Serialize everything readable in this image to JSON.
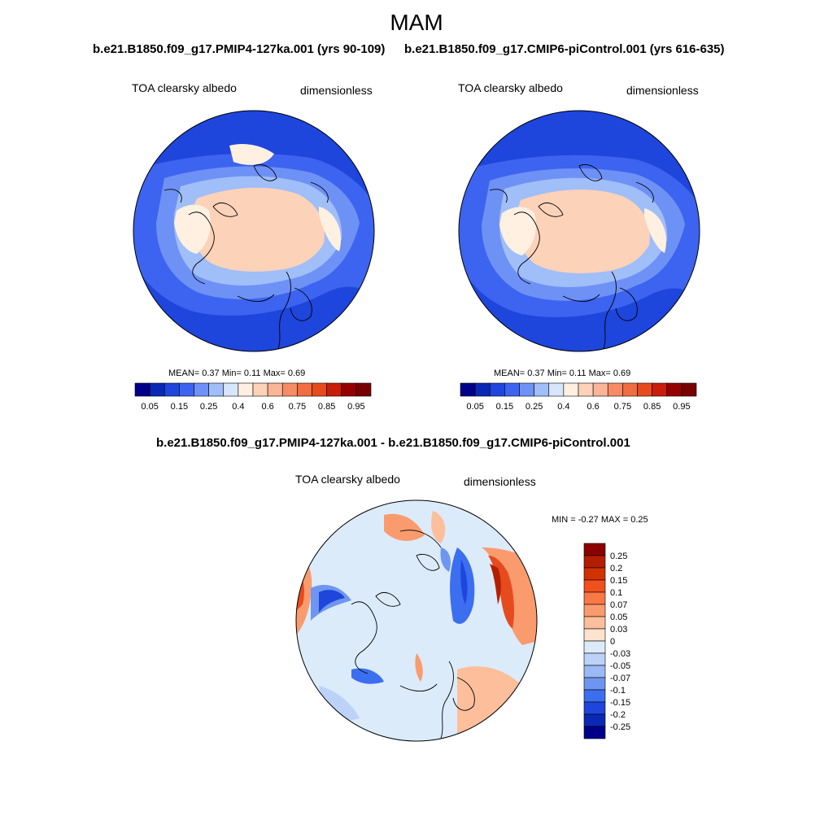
{
  "page": {
    "title": "MAM",
    "left_panel_title": "b.e21.B1850.f09_g17.PMIP4-127ka.001 (yrs 90-109)",
    "right_panel_title": "b.e21.B1850.f09_g17.CMIP6-piControl.001 (yrs 616-635)",
    "diff_panel_title": "b.e21.B1850.f09_g17.PMIP4-127ka.001 - b.e21.B1850.f09_g17.CMIP6-piControl.001"
  },
  "panels": {
    "left": {
      "variable": "TOA clearsky albedo",
      "units": "dimensionless",
      "stats": "MEAN=   0.37  Min=   0.11  Max=   0.69"
    },
    "right": {
      "variable": "TOA clearsky albedo",
      "units": "dimensionless",
      "stats": "MEAN=   0.37  Min=   0.11  Max=   0.69"
    },
    "diff": {
      "variable": "TOA clearsky albedo",
      "units": "dimensionless",
      "stats": "MIN =  -0.27 MAX =   0.25"
    }
  },
  "colorbar_abs": {
    "colors": [
      "#00008b",
      "#0a28b4",
      "#1e46dc",
      "#3c64f0",
      "#6e91f5",
      "#a0bef8",
      "#d7e6fa",
      "#fff0e1",
      "#fcd2b9",
      "#fab496",
      "#f58c64",
      "#f06e41",
      "#e64b1e",
      "#c81e0a",
      "#960000",
      "#780000"
    ],
    "tick_labels": [
      "0.05",
      "0.15",
      "0.25",
      "0.4",
      "0.6",
      "0.75",
      "0.85",
      "0.95"
    ]
  },
  "colorbar_diff": {
    "colors": [
      "#8b0000",
      "#b41e00",
      "#d23200",
      "#f0501e",
      "#fa7846",
      "#fa9b6e",
      "#fcbe9b",
      "#fde3cd",
      "#dcebfa",
      "#bcd2f8",
      "#9bb9f5",
      "#6e96f0",
      "#3c6ef0",
      "#1e46dc",
      "#0a28b4",
      "#00008b"
    ],
    "tick_labels": [
      "0.25",
      "0.2",
      "0.15",
      "0.1",
      "0.07",
      "0.05",
      "0.03",
      "0",
      "-0.03",
      "-0.05",
      "-0.07",
      "-0.1",
      "-0.15",
      "-0.2",
      "-0.25"
    ]
  },
  "map_colors": {
    "ocean_dark": "#1e46dc",
    "ocean_mid": "#3c64f0",
    "ocean_light": "#6e91f5",
    "ice_pale": "#a0bef8",
    "land_cream": "#fff0e1",
    "ice_salmon": "#fcd2b9",
    "diff_bg": "#dcebfa",
    "diff_red": "#e64b1e",
    "diff_orange": "#fa9b6e",
    "diff_blue": "#1e46dc",
    "diff_lightblue": "#9bb9f5"
  }
}
